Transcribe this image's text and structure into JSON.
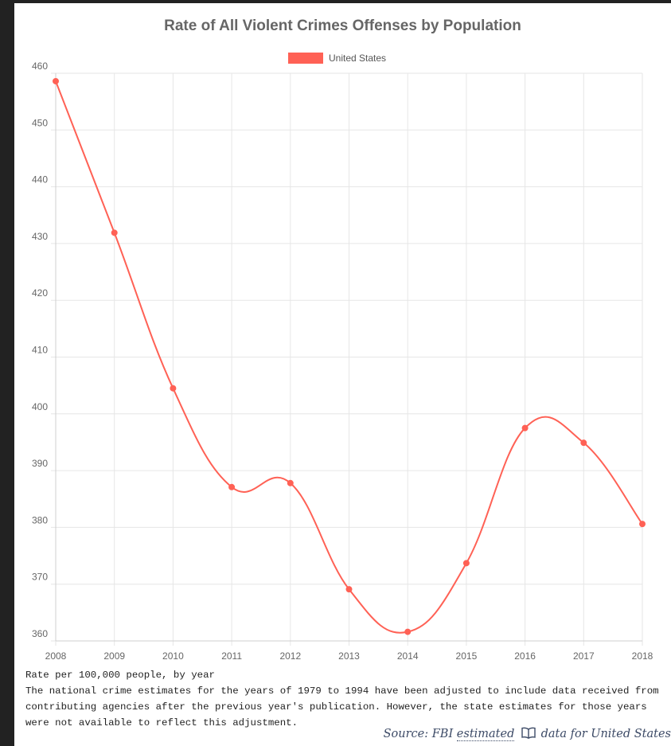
{
  "chart_data": {
    "type": "line",
    "title": "Rate of All Violent Crimes Offenses by Population",
    "x": [
      "2008",
      "2009",
      "2010",
      "2011",
      "2012",
      "2013",
      "2014",
      "2015",
      "2016",
      "2017",
      "2018"
    ],
    "series": [
      {
        "name": "United States",
        "color": "#ff6155",
        "values": [
          458.6,
          431.9,
          404.5,
          387.1,
          387.8,
          369.1,
          361.6,
          373.7,
          397.5,
          394.9,
          380.6
        ]
      }
    ],
    "y_ticks": [
      "360",
      "370",
      "380",
      "390",
      "400",
      "410",
      "420",
      "430",
      "440",
      "450",
      "460"
    ],
    "ylim": [
      360,
      460
    ],
    "grid": true,
    "legend_position": "top-center"
  },
  "notes": {
    "line1": "Rate per 100,000 people, by year",
    "line2": "The national crime estimates for the years of 1979 to 1994 have been adjusted to include data received from contributing agencies after the previous year's publication. However, the state estimates for those years were not available to reflect this adjustment."
  },
  "source": {
    "prefix": "Source: FBI",
    "link_text": "estimated",
    "icon": "book-icon",
    "suffix": "data for United States"
  }
}
